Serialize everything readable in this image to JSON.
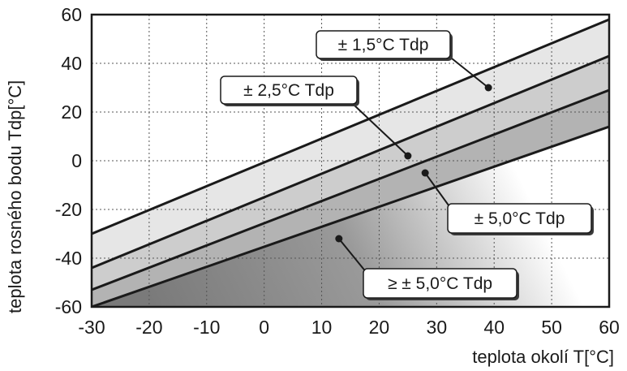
{
  "chart_data": {
    "type": "line",
    "title": "",
    "xlabel": "teplota okolí  T[°C]",
    "ylabel": "teplota rosného bodu  Tdp[°C]",
    "xlim": [
      -30,
      60
    ],
    "ylim": [
      -60,
      60
    ],
    "xticks": [
      -30,
      -20,
      -10,
      0,
      10,
      20,
      30,
      40,
      50,
      60
    ],
    "yticks": [
      -60,
      -40,
      -20,
      0,
      20,
      40,
      60
    ],
    "grid": true,
    "series": [
      {
        "name": "± 1,5°C Tdp",
        "x": [
          -30,
          60
        ],
        "y": [
          -30,
          58
        ]
      },
      {
        "name": "± 2,5°C Tdp",
        "x": [
          -30,
          60
        ],
        "y": [
          -44,
          43
        ]
      },
      {
        "name": "± 5,0°C Tdp",
        "x": [
          -30,
          60
        ],
        "y": [
          -53,
          29
        ]
      },
      {
        "name": "≥ ± 5,0°C Tdp",
        "x": [
          -30,
          60
        ],
        "y": [
          -60,
          14
        ]
      }
    ],
    "annotations": [
      {
        "text": "± 1,5°C Tdp",
        "point": [
          39,
          30
        ]
      },
      {
        "text": "± 2,5°C Tdp",
        "point": [
          25,
          2
        ]
      },
      {
        "text": "± 5,0°C Tdp",
        "point": [
          28,
          -5
        ]
      },
      {
        "text": "≥ ± 5,0°C Tdp",
        "point": [
          13,
          -32
        ]
      }
    ],
    "colors": {
      "band_1": "#e6e6e6",
      "band_2": "#cdcdcd",
      "band_3": "#b3b3b3",
      "band_4_dark": "#7a7a7a",
      "band_4_light": "#ffffff",
      "lines": "#1a1a1a",
      "grid": "#555555"
    }
  }
}
